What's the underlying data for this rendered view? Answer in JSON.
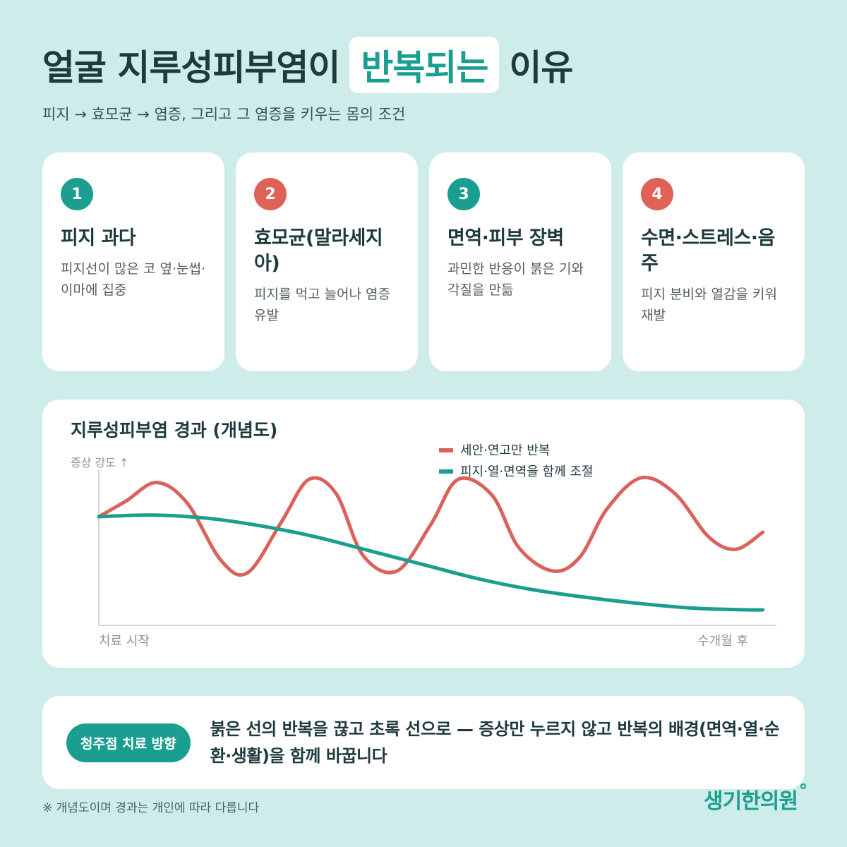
{
  "header": {
    "title_before": "얼굴 지루성피부염이",
    "title_highlight": "반복되는",
    "title_after": "이유",
    "subtitle": "피지 → 효모균 → 염증, 그리고 그 염증을 키우는 몸의 조건"
  },
  "cards": [
    {
      "num": "1",
      "color": "#1a9e8f",
      "title": "피지 과다",
      "desc": "피지선이 많은 코 옆·눈썹·이마에 집중"
    },
    {
      "num": "2",
      "color": "#e06158",
      "title": "효모균(말라세지아)",
      "desc": "피지를 먹고 늘어나 염증 유발"
    },
    {
      "num": "3",
      "color": "#1a9e8f",
      "title": "면역·피부 장벽",
      "desc": "과민한 반응이 붉은 기와 각질을 만듦"
    },
    {
      "num": "4",
      "color": "#e06158",
      "title": "수면·스트레스·음주",
      "desc": "피지 분비와 열감을 키워 재발"
    }
  ],
  "chart_data": {
    "type": "line",
    "title": "지루성피부염 경과 (개념도)",
    "ylabel": "증상 강도 ↑",
    "xlabel_start": "치료 시작",
    "xlabel_end": "수개월 후",
    "xlim": [
      0,
      10
    ],
    "ylim": [
      0,
      10
    ],
    "grid": false,
    "legend_position": "top-right",
    "series": [
      {
        "name": "세안·연고만 반복",
        "color": "#db625b",
        "x": [
          0,
          0.4,
          0.85,
          1.3,
          1.8,
          2.2,
          2.7,
          3.1,
          3.5,
          3.9,
          4.4,
          4.9,
          5.3,
          5.8,
          6.2,
          6.7,
          7.1,
          7.5,
          8.0,
          8.5,
          9.0,
          9.4,
          9.8
        ],
        "y": [
          7.0,
          8.0,
          9.2,
          7.9,
          4.2,
          3.4,
          6.7,
          9.4,
          8.5,
          4.5,
          3.5,
          6.5,
          9.4,
          8.4,
          5.0,
          3.5,
          4.4,
          7.5,
          9.5,
          8.5,
          5.7,
          4.9,
          6.0
        ]
      },
      {
        "name": "피지·열·면역을 함께 조절",
        "color": "#1a9e8f",
        "x": [
          0,
          0.8,
          1.6,
          2.4,
          3.2,
          4.0,
          4.8,
          5.6,
          6.4,
          7.2,
          8.0,
          8.8,
          9.6,
          9.8
        ],
        "y": [
          7.0,
          7.1,
          6.9,
          6.4,
          5.7,
          4.8,
          3.9,
          3.0,
          2.3,
          1.8,
          1.4,
          1.1,
          1.0,
          1.0
        ]
      }
    ]
  },
  "bottom": {
    "pill": "청주점 치료 방향",
    "text": "붉은 선의 반복을 끊고 초록 선으로 — 증상만 누르지 않고 반복의 배경(면역·열·순환·생활)을 함께 바꿉니다"
  },
  "footnote": "※ 개념도이며 경과는 개인에 따라 다릅니다",
  "brand": "생기한의원"
}
